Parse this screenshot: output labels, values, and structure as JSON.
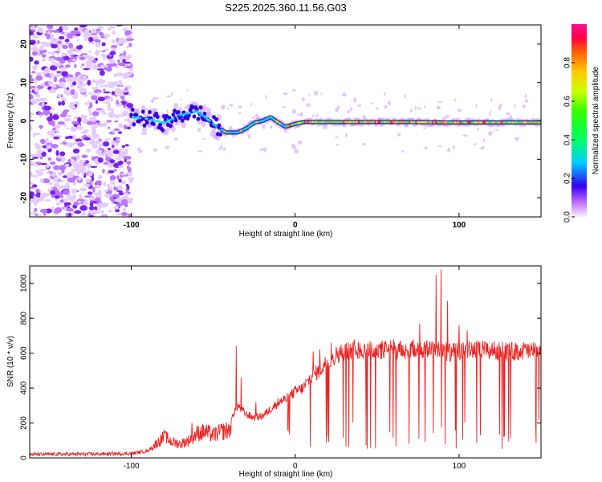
{
  "chart_data": [
    {
      "type": "heatmap",
      "title": "S225.2025.360.11.56.G03",
      "xlabel": "Height of straight line (km)",
      "ylabel": "Frequency (Hz)",
      "xlim": [
        -162,
        150
      ],
      "ylim": [
        -25,
        25
      ],
      "xticks": [
        -100,
        0,
        100
      ],
      "yticks": [
        -20,
        -10,
        0,
        10,
        20
      ],
      "colorbar": {
        "label": "Normalized spectral amplitude",
        "range": [
          0,
          1
        ],
        "ticks": [
          0.0,
          0.2,
          0.4,
          0.6,
          0.8
        ],
        "tick_labels": [
          "0.0",
          "0.2",
          "0.4",
          "0.6",
          "0.8"
        ]
      },
      "ridge": [
        [
          -100,
          1.0
        ],
        [
          -90,
          0.5
        ],
        [
          -80,
          -0.5
        ],
        [
          -70,
          1.5
        ],
        [
          -60,
          2.5
        ],
        [
          -55,
          1.0
        ],
        [
          -48,
          -1.5
        ],
        [
          -42,
          -3.0
        ],
        [
          -35,
          -3.0
        ],
        [
          -30,
          -2.0
        ],
        [
          -25,
          -0.5
        ],
        [
          -20,
          0.0
        ],
        [
          -15,
          1.0
        ],
        [
          -10,
          -0.5
        ],
        [
          -6,
          -1.5
        ],
        [
          -2,
          -1.0
        ],
        [
          5,
          -0.3
        ],
        [
          20,
          -0.3
        ],
        [
          60,
          -0.3
        ],
        [
          100,
          -0.4
        ],
        [
          150,
          -0.4
        ]
      ],
      "scatter_region_x": [
        -162,
        -100
      ]
    },
    {
      "type": "line",
      "xlabel": "Height of straight line (km)",
      "ylabel": "SNR (10 * v/v)",
      "xlim": [
        -162,
        150
      ],
      "ylim": [
        0,
        1100
      ],
      "xticks": [
        -100,
        0,
        100
      ],
      "yticks": [
        0,
        200,
        400,
        600,
        800,
        1000
      ],
      "series": [
        {
          "color": "#ee2222",
          "envelope": [
            [
              -162,
              20
            ],
            [
              -120,
              22
            ],
            [
              -100,
              25
            ],
            [
              -90,
              40
            ],
            [
              -85,
              80
            ],
            [
              -80,
              120
            ],
            [
              -75,
              90
            ],
            [
              -70,
              80
            ],
            [
              -65,
              100
            ],
            [
              -60,
              140
            ],
            [
              -55,
              150
            ],
            [
              -50,
              130
            ],
            [
              -45,
              150
            ],
            [
              -40,
              160
            ],
            [
              -38,
              250
            ],
            [
              -35,
              300
            ],
            [
              -30,
              250
            ],
            [
              -25,
              230
            ],
            [
              -20,
              240
            ],
            [
              -15,
              280
            ],
            [
              -10,
              320
            ],
            [
              -5,
              340
            ],
            [
              0,
              380
            ],
            [
              5,
              400
            ],
            [
              10,
              470
            ],
            [
              15,
              500
            ],
            [
              20,
              560
            ],
            [
              25,
              590
            ],
            [
              30,
              610
            ],
            [
              40,
              620
            ],
            [
              50,
              615
            ],
            [
              60,
              620
            ],
            [
              70,
              610
            ],
            [
              75,
              625
            ],
            [
              80,
              620
            ],
            [
              85,
              640
            ],
            [
              90,
              620
            ],
            [
              95,
              600
            ],
            [
              100,
              610
            ],
            [
              110,
              620
            ],
            [
              120,
              615
            ],
            [
              130,
              610
            ],
            [
              140,
              615
            ],
            [
              150,
              605
            ]
          ],
          "peaks": [
            [
              -79,
              150
            ],
            [
              -63,
              200
            ],
            [
              -36,
              640
            ],
            [
              -33,
              460
            ],
            [
              -24,
              320
            ],
            [
              11,
              610
            ],
            [
              15,
              620
            ],
            [
              22,
              660
            ],
            [
              36,
              680
            ],
            [
              50,
              650
            ],
            [
              60,
              680
            ],
            [
              72,
              680
            ],
            [
              76,
              770
            ],
            [
              86,
              1050
            ],
            [
              89,
              1080
            ],
            [
              93,
              900
            ],
            [
              100,
              760
            ],
            [
              105,
              730
            ]
          ]
        }
      ]
    }
  ]
}
